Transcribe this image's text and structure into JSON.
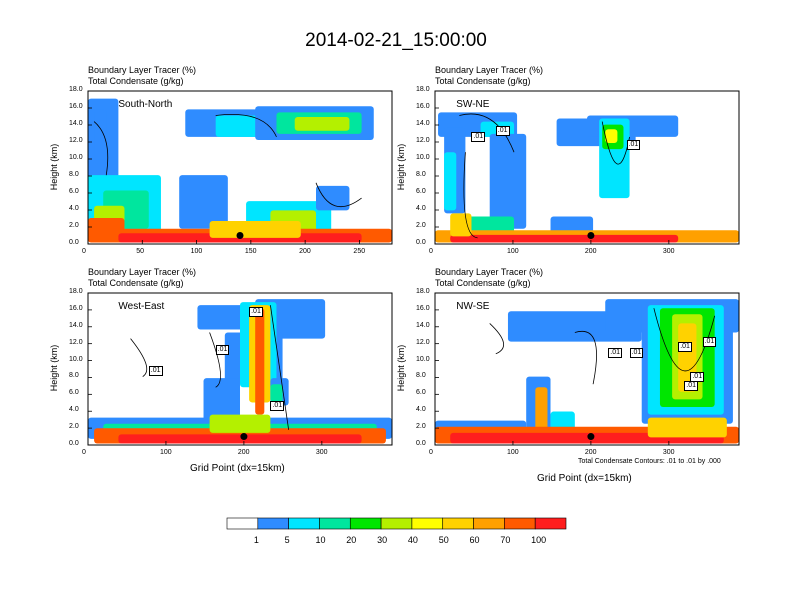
{
  "figure": {
    "title": "2014-02-21_15:00:00",
    "panel_title_line1": "Boundary Layer Tracer   (%)",
    "panel_title_line2": "Total Condensate   (g/kg)",
    "y_axis_label": "Height (km)",
    "x_axis_label": "Grid Point (dx=15km)",
    "contour_note": "Total Condensate Contours: .01 to .01 by .000"
  },
  "colors": {
    "levels": [
      "#ffffff",
      "#2f8cff",
      "#00e5ff",
      "#00e69e",
      "#00e600",
      "#b4f000",
      "#ffff00",
      "#ffd200",
      "#ffa000",
      "#ff5a00",
      "#ff1e1e"
    ],
    "contour": "#000000",
    "marker": "#000000"
  },
  "colorbar": {
    "labels": [
      "1",
      "5",
      "10",
      "20",
      "30",
      "40",
      "50",
      "60",
      "70",
      "100"
    ]
  },
  "chart_data": [
    {
      "type": "heatmap",
      "region": "South-North",
      "title": "Boundary Layer Tracer (%) / Total Condensate (g/kg)",
      "ylabel": "Height (km)",
      "xlim": [
        0,
        280
      ],
      "ylim": [
        0,
        18
      ],
      "x_ticks": [
        "0",
        "50",
        "100",
        "150",
        "200",
        "250"
      ],
      "y_ticks": [
        "0.0",
        "2.0",
        "4.0",
        "6.0",
        "8.0",
        "10.0",
        "12.0",
        "14.0",
        "16.0",
        "18.0"
      ],
      "marker": {
        "x": 140,
        "y": 1.0
      },
      "contour_labels": []
    },
    {
      "type": "heatmap",
      "region": "SW-NE",
      "title": "Boundary Layer Tracer (%) / Total Condensate (g/kg)",
      "ylabel": "Height (km)",
      "xlim": [
        0,
        390
      ],
      "ylim": [
        0,
        18
      ],
      "x_ticks": [
        "0",
        "100",
        "200",
        "300"
      ],
      "y_ticks": [
        "0.0",
        "2.0",
        "4.0",
        "6.0",
        "8.0",
        "10.0",
        "12.0",
        "14.0",
        "16.0",
        "18.0"
      ],
      "marker": {
        "x": 200,
        "y": 1.0
      },
      "contour_labels": [
        ".01",
        ".01",
        ".01"
      ]
    },
    {
      "type": "heatmap",
      "region": "West-East",
      "title": "Boundary Layer Tracer (%) / Total Condensate (g/kg)",
      "ylabel": "Height (km)",
      "xlabel": "Grid Point (dx=15km)",
      "xlim": [
        0,
        390
      ],
      "ylim": [
        0,
        18
      ],
      "x_ticks": [
        "0",
        "100",
        "200",
        "300"
      ],
      "y_ticks": [
        "0.0",
        "2.0",
        "4.0",
        "6.0",
        "8.0",
        "10.0",
        "12.0",
        "14.0",
        "16.0",
        "18.0"
      ],
      "marker": {
        "x": 200,
        "y": 1.0
      },
      "contour_labels": [
        ".01",
        ".01",
        ".01",
        ".01"
      ]
    },
    {
      "type": "heatmap",
      "region": "NW-SE",
      "title": "Boundary Layer Tracer (%) / Total Condensate (g/kg)",
      "ylabel": "Height (km)",
      "xlabel": "Grid Point (dx=15km)",
      "xlim": [
        0,
        390
      ],
      "ylim": [
        0,
        18
      ],
      "x_ticks": [
        "0",
        "100",
        "200",
        "300"
      ],
      "y_ticks": [
        "0.0",
        "2.0",
        "4.0",
        "6.0",
        "8.0",
        "10.0",
        "12.0",
        "14.0",
        "16.0",
        "18.0"
      ],
      "marker": {
        "x": 200,
        "y": 1.0
      },
      "contour_labels": [
        ".01",
        ".01",
        ".01",
        ".01",
        ".01",
        ".01"
      ]
    }
  ]
}
